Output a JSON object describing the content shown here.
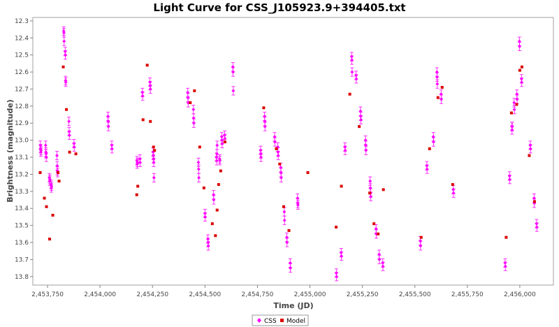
{
  "chart_data": {
    "type": "scatter",
    "title": "Light Curve for CSS_J105923.9+394405.txt",
    "xlabel": "Time (JD)",
    "ylabel": "Brightness (magnitude)",
    "xlim": [
      2453680,
      2456160
    ],
    "ylim": [
      13.85,
      12.28
    ],
    "y_inverted": true,
    "x_ticks": [
      2453750,
      2454000,
      2454250,
      2454500,
      2454750,
      2455000,
      2455250,
      2455500,
      2455750,
      2456000
    ],
    "x_tick_labels": [
      "2,453,750",
      "2,454,000",
      "2,454,250",
      "2,454,500",
      "2,454,750",
      "2,455,000",
      "2,455,250",
      "2,455,500",
      "2,455,750",
      "2,456,000"
    ],
    "y_ticks": [
      12.3,
      12.4,
      12.5,
      12.6,
      12.7,
      12.8,
      12.9,
      13.0,
      13.1,
      13.2,
      13.3,
      13.4,
      13.5,
      13.6,
      13.7,
      13.8
    ],
    "y_tick_labels": [
      "12.3",
      "12.4",
      "12.5",
      "12.6",
      "12.7",
      "12.8",
      "12.9",
      "13.0",
      "13.1",
      "13.2",
      "13.3",
      "13.4",
      "13.5",
      "13.6",
      "13.7",
      "13.8"
    ],
    "grid": false,
    "legend_position": "bottom-center",
    "series": [
      {
        "name": "CSS",
        "color": "#ff00ff",
        "marker": "diamond-errorbar",
        "error": 0.025,
        "points": [
          [
            2453716,
            13.03
          ],
          [
            2453717,
            13.05
          ],
          [
            2453718,
            13.07
          ],
          [
            2453719,
            13.06
          ],
          [
            2453741,
            13.03
          ],
          [
            2453742,
            13.07
          ],
          [
            2453743,
            13.08
          ],
          [
            2453744,
            13.1
          ],
          [
            2453759,
            13.22
          ],
          [
            2453760,
            13.24
          ],
          [
            2453761,
            13.23
          ],
          [
            2453767,
            13.26
          ],
          [
            2453768,
            13.28
          ],
          [
            2453769,
            13.27
          ],
          [
            2453795,
            13.09
          ],
          [
            2453796,
            13.15
          ],
          [
            2453797,
            13.18
          ],
          [
            2453798,
            13.19
          ],
          [
            2453827,
            12.36
          ],
          [
            2453828,
            12.37
          ],
          [
            2453829,
            12.42
          ],
          [
            2453834,
            12.48
          ],
          [
            2453835,
            12.5
          ],
          [
            2453836,
            12.65
          ],
          [
            2453837,
            12.66
          ],
          [
            2453852,
            12.89
          ],
          [
            2453853,
            12.95
          ],
          [
            2453854,
            12.97
          ],
          [
            2453876,
            13.02
          ],
          [
            2453877,
            13.04
          ],
          [
            2454038,
            12.86
          ],
          [
            2454039,
            12.89
          ],
          [
            2454040,
            12.92
          ],
          [
            2454056,
            13.03
          ],
          [
            2454057,
            13.05
          ],
          [
            2454176,
            13.12
          ],
          [
            2454177,
            13.14
          ],
          [
            2454178,
            13.13
          ],
          [
            2454190,
            13.11
          ],
          [
            2454191,
            13.13
          ],
          [
            2454202,
            12.72
          ],
          [
            2454203,
            12.74
          ],
          [
            2454238,
            12.66
          ],
          [
            2454239,
            12.68
          ],
          [
            2454240,
            12.7
          ],
          [
            2454253,
            13.07
          ],
          [
            2454254,
            13.09
          ],
          [
            2454255,
            13.11
          ],
          [
            2454256,
            13.13
          ],
          [
            2454257,
            13.22
          ],
          [
            2454418,
            12.72
          ],
          [
            2454419,
            12.75
          ],
          [
            2454420,
            12.78
          ],
          [
            2454445,
            12.82
          ],
          [
            2454446,
            12.87
          ],
          [
            2454447,
            12.9
          ],
          [
            2454469,
            13.13
          ],
          [
            2454470,
            13.17
          ],
          [
            2454471,
            13.22
          ],
          [
            2454500,
            13.43
          ],
          [
            2454501,
            13.45
          ],
          [
            2454514,
            13.58
          ],
          [
            2454515,
            13.6
          ],
          [
            2454516,
            13.62
          ],
          [
            2454541,
            13.32
          ],
          [
            2454542,
            13.35
          ],
          [
            2454555,
            13.1
          ],
          [
            2454556,
            13.12
          ],
          [
            2454557,
            13.08
          ],
          [
            2454558,
            13.03
          ],
          [
            2454570,
            13.11
          ],
          [
            2454571,
            13.12
          ],
          [
            2454580,
            12.98
          ],
          [
            2454581,
            13.0
          ],
          [
            2454582,
            13.02
          ],
          [
            2454594,
            12.97
          ],
          [
            2454595,
            12.99
          ],
          [
            2454633,
            12.57
          ],
          [
            2454634,
            12.6
          ],
          [
            2454635,
            12.71
          ],
          [
            2454765,
            13.06
          ],
          [
            2454766,
            13.08
          ],
          [
            2454767,
            13.1
          ],
          [
            2454784,
            12.86
          ],
          [
            2454785,
            12.89
          ],
          [
            2454786,
            12.92
          ],
          [
            2454832,
            12.98
          ],
          [
            2454833,
            13.01
          ],
          [
            2454847,
            13.04
          ],
          [
            2454848,
            13.07
          ],
          [
            2454849,
            13.09
          ],
          [
            2454861,
            13.16
          ],
          [
            2454862,
            13.19
          ],
          [
            2454863,
            13.22
          ],
          [
            2454878,
            13.42
          ],
          [
            2454879,
            13.47
          ],
          [
            2454890,
            13.57
          ],
          [
            2454891,
            13.6
          ],
          [
            2454906,
            13.72
          ],
          [
            2454907,
            13.75
          ],
          [
            2454941,
            13.34
          ],
          [
            2454942,
            13.37
          ],
          [
            2454943,
            13.38
          ],
          [
            2455126,
            13.78
          ],
          [
            2455127,
            13.8
          ],
          [
            2455149,
            13.66
          ],
          [
            2455150,
            13.68
          ],
          [
            2455167,
            13.04
          ],
          [
            2455168,
            13.06
          ],
          [
            2455199,
            12.51
          ],
          [
            2455200,
            12.53
          ],
          [
            2455201,
            12.6
          ],
          [
            2455220,
            12.62
          ],
          [
            2455221,
            12.64
          ],
          [
            2455241,
            12.83
          ],
          [
            2455242,
            12.86
          ],
          [
            2455243,
            12.88
          ],
          [
            2455265,
            13.0
          ],
          [
            2455266,
            13.03
          ],
          [
            2455267,
            13.06
          ],
          [
            2455287,
            13.24
          ],
          [
            2455288,
            13.28
          ],
          [
            2455289,
            13.31
          ],
          [
            2455290,
            13.33
          ],
          [
            2455315,
            13.52
          ],
          [
            2455316,
            13.55
          ],
          [
            2455330,
            13.67
          ],
          [
            2455331,
            13.7
          ],
          [
            2455347,
            13.72
          ],
          [
            2455348,
            13.74
          ],
          [
            2455526,
            13.59
          ],
          [
            2455527,
            13.62
          ],
          [
            2455557,
            13.15
          ],
          [
            2455558,
            13.17
          ],
          [
            2455588,
            12.98
          ],
          [
            2455589,
            13.01
          ],
          [
            2455605,
            12.6
          ],
          [
            2455606,
            12.63
          ],
          [
            2455607,
            12.67
          ],
          [
            2455625,
            12.73
          ],
          [
            2455626,
            12.76
          ],
          [
            2455683,
            13.29
          ],
          [
            2455684,
            13.31
          ],
          [
            2455951,
            13.21
          ],
          [
            2455952,
            13.23
          ],
          [
            2455962,
            12.92
          ],
          [
            2455963,
            12.94
          ],
          [
            2455964,
            12.92
          ],
          [
            2455973,
            12.78
          ],
          [
            2455974,
            12.82
          ],
          [
            2455986,
            12.73
          ],
          [
            2455987,
            12.76
          ],
          [
            2455998,
            12.42
          ],
          [
            2455999,
            12.45
          ],
          [
            2456008,
            12.64
          ],
          [
            2456009,
            12.66
          ],
          [
            2456050,
            13.03
          ],
          [
            2456051,
            13.05
          ],
          [
            2456068,
            13.34
          ],
          [
            2456069,
            13.37
          ],
          [
            2456080,
            13.49
          ],
          [
            2456081,
            13.51
          ],
          [
            2455930,
            13.72
          ],
          [
            2455931,
            13.74
          ]
        ]
      },
      {
        "name": "Model",
        "color": "#dd0000",
        "marker": "square",
        "points": [
          [
            2453715,
            13.19
          ],
          [
            2453735,
            13.34
          ],
          [
            2453745,
            13.39
          ],
          [
            2453760,
            13.58
          ],
          [
            2453775,
            13.44
          ],
          [
            2453800,
            13.19
          ],
          [
            2453805,
            13.24
          ],
          [
            2453825,
            12.57
          ],
          [
            2453840,
            12.82
          ],
          [
            2453855,
            13.07
          ],
          [
            2453885,
            13.08
          ],
          [
            2454175,
            13.32
          ],
          [
            2454180,
            13.27
          ],
          [
            2454205,
            12.88
          ],
          [
            2454225,
            12.56
          ],
          [
            2454240,
            12.89
          ],
          [
            2454255,
            13.04
          ],
          [
            2454260,
            13.06
          ],
          [
            2454430,
            12.78
          ],
          [
            2454450,
            12.71
          ],
          [
            2454475,
            13.04
          ],
          [
            2454495,
            13.28
          ],
          [
            2454535,
            13.49
          ],
          [
            2454550,
            13.56
          ],
          [
            2454558,
            13.41
          ],
          [
            2454565,
            13.26
          ],
          [
            2454575,
            13.18
          ],
          [
            2454595,
            13.01
          ],
          [
            2454780,
            12.81
          ],
          [
            2454840,
            13.05
          ],
          [
            2454856,
            13.14
          ],
          [
            2454875,
            13.39
          ],
          [
            2454900,
            13.53
          ],
          [
            2454990,
            13.19
          ],
          [
            2455125,
            13.51
          ],
          [
            2455150,
            13.27
          ],
          [
            2455190,
            12.73
          ],
          [
            2455235,
            12.92
          ],
          [
            2455285,
            13.31
          ],
          [
            2455305,
            13.49
          ],
          [
            2455325,
            13.55
          ],
          [
            2455350,
            13.29
          ],
          [
            2455530,
            13.57
          ],
          [
            2455570,
            13.05
          ],
          [
            2455610,
            12.75
          ],
          [
            2455630,
            12.69
          ],
          [
            2455680,
            13.26
          ],
          [
            2455935,
            13.57
          ],
          [
            2455960,
            12.84
          ],
          [
            2455985,
            12.79
          ],
          [
            2456000,
            12.59
          ],
          [
            2456010,
            12.57
          ],
          [
            2456045,
            13.09
          ],
          [
            2456070,
            13.36
          ]
        ]
      }
    ]
  }
}
